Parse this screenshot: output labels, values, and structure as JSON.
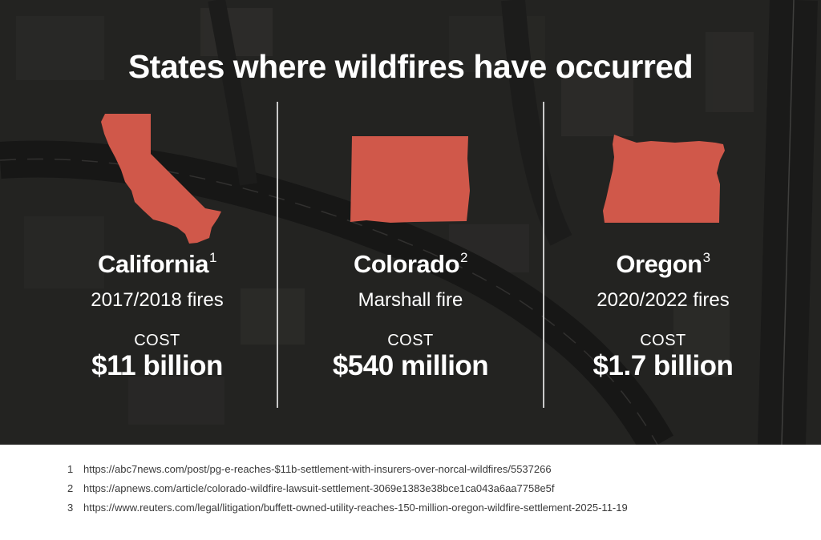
{
  "title": "States where wildfires have occurred",
  "colors": {
    "state_fill": "#d0584a",
    "background": "#2b2b2a",
    "text": "#ffffff"
  },
  "states": [
    {
      "name": "California",
      "ref": "1",
      "fire": "2017/2018 fires",
      "cost_label": "COST",
      "cost": "$11 billion",
      "shape": "california-map-icon"
    },
    {
      "name": "Colorado",
      "ref": "2",
      "fire": "Marshall fire",
      "cost_label": "COST",
      "cost": "$540 million",
      "shape": "colorado-map-icon"
    },
    {
      "name": "Oregon",
      "ref": "3",
      "fire": "2020/2022 fires",
      "cost_label": "COST",
      "cost": "$1.7 billion",
      "shape": "oregon-map-icon"
    }
  ],
  "footnotes": [
    {
      "num": "1",
      "url": "https://abc7news.com/post/pg-e-reaches-$11b-settlement-with-insurers-over-norcal-wildfires/5537266"
    },
    {
      "num": "2",
      "url": "https://apnews.com/article/colorado-wildfire-lawsuit-settlement-3069e1383e38bce1ca043a6aa7758e5f"
    },
    {
      "num": "3",
      "url": "https://www.reuters.com/legal/litigation/buffett-owned-utility-reaches-150-million-oregon-wildfire-settlement-2025-11-19"
    }
  ]
}
